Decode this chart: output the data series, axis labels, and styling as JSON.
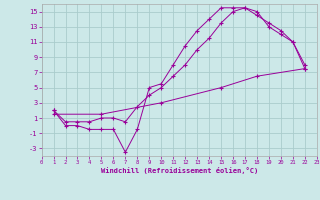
{
  "xlabel": "Windchill (Refroidissement éolien,°C)",
  "background_color": "#cce8e8",
  "grid_color": "#aacccc",
  "line_color": "#990099",
  "xlim": [
    0,
    23
  ],
  "ylim": [
    -4,
    16
  ],
  "xticks": [
    0,
    1,
    2,
    3,
    4,
    5,
    6,
    7,
    8,
    9,
    10,
    11,
    12,
    13,
    14,
    15,
    16,
    17,
    18,
    19,
    20,
    21,
    22,
    23
  ],
  "yticks": [
    -3,
    -1,
    1,
    3,
    5,
    7,
    9,
    11,
    13,
    15
  ],
  "line1_x": [
    1,
    2,
    3,
    4,
    5,
    6,
    7,
    8,
    9,
    10,
    11,
    12,
    13,
    14,
    15,
    16,
    17,
    18,
    19,
    20,
    21,
    22
  ],
  "line1_y": [
    2,
    0,
    0,
    -0.5,
    -0.5,
    -0.5,
    -3.5,
    -0.5,
    5,
    5.5,
    8,
    10.5,
    12.5,
    14,
    15.5,
    15.5,
    15.5,
    15,
    13,
    12,
    11,
    8
  ],
  "line2_x": [
    1,
    2,
    3,
    4,
    5,
    6,
    7,
    8,
    9,
    10,
    11,
    12,
    13,
    14,
    15,
    16,
    17,
    18,
    19,
    20,
    21,
    22
  ],
  "line2_y": [
    2,
    0.5,
    0.5,
    0.5,
    1,
    1,
    0.5,
    2.5,
    4,
    5,
    6.5,
    8,
    10,
    11.5,
    13.5,
    15,
    15.5,
    14.5,
    13.5,
    12.5,
    11,
    7.5
  ],
  "line3_x": [
    1,
    5,
    10,
    15,
    18,
    22
  ],
  "line3_y": [
    1.5,
    1.5,
    3,
    5,
    6.5,
    7.5
  ]
}
